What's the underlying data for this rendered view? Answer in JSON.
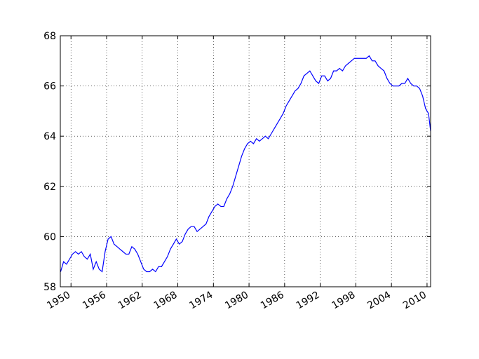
{
  "chart_data": {
    "type": "line",
    "x": [
      1948.25,
      1948.75,
      1949.25,
      1949.75,
      1950.25,
      1950.75,
      1951.25,
      1951.75,
      1952.25,
      1952.75,
      1953.25,
      1953.75,
      1954.25,
      1954.75,
      1955.25,
      1955.75,
      1956.25,
      1956.75,
      1957.25,
      1957.75,
      1958.25,
      1958.75,
      1959.25,
      1959.75,
      1960.25,
      1960.75,
      1961.25,
      1961.75,
      1962.25,
      1962.75,
      1963.25,
      1963.75,
      1964.25,
      1964.75,
      1965.25,
      1965.75,
      1966.25,
      1966.75,
      1967.25,
      1967.75,
      1968.25,
      1968.75,
      1969.25,
      1969.75,
      1970.25,
      1970.75,
      1971.25,
      1971.75,
      1972.25,
      1972.75,
      1973.25,
      1973.75,
      1974.25,
      1974.75,
      1975.25,
      1975.75,
      1976.25,
      1976.75,
      1977.25,
      1977.75,
      1978.25,
      1978.75,
      1979.25,
      1979.75,
      1980.25,
      1980.75,
      1981.25,
      1981.75,
      1982.25,
      1982.75,
      1983.25,
      1983.75,
      1984.25,
      1984.75,
      1985.25,
      1985.75,
      1986.25,
      1986.75,
      1987.25,
      1987.75,
      1988.25,
      1988.75,
      1989.25,
      1989.75,
      1990.25,
      1990.75,
      1991.25,
      1991.75,
      1992.25,
      1992.75,
      1993.25,
      1993.75,
      1994.25,
      1994.75,
      1995.25,
      1995.75,
      1996.25,
      1996.75,
      1997.25,
      1997.75,
      1998.25,
      1998.75,
      1999.25,
      1999.75,
      2000.25,
      2000.75,
      2001.25,
      2001.75,
      2002.25,
      2002.75,
      2003.25,
      2003.75,
      2004.25,
      2004.75,
      2005.25,
      2005.75,
      2006.25,
      2006.75,
      2007.25,
      2007.75,
      2008.25,
      2008.75,
      2009.25,
      2009.75,
      2010.25,
      2010.6
    ],
    "series": [
      {
        "color": "#0000ff",
        "values": [
          58.6,
          59.0,
          58.9,
          59.1,
          59.3,
          59.4,
          59.3,
          59.4,
          59.2,
          59.1,
          59.3,
          58.7,
          59.0,
          58.7,
          58.6,
          59.4,
          59.9,
          60.0,
          59.7,
          59.6,
          59.5,
          59.4,
          59.3,
          59.3,
          59.6,
          59.5,
          59.3,
          59.0,
          58.7,
          58.6,
          58.6,
          58.7,
          58.6,
          58.8,
          58.8,
          59.0,
          59.2,
          59.5,
          59.7,
          59.9,
          59.7,
          59.8,
          60.1,
          60.3,
          60.4,
          60.4,
          60.2,
          60.3,
          60.4,
          60.5,
          60.8,
          61.0,
          61.2,
          61.3,
          61.2,
          61.2,
          61.5,
          61.7,
          62.0,
          62.4,
          62.8,
          63.2,
          63.5,
          63.7,
          63.8,
          63.7,
          63.9,
          63.8,
          63.9,
          64.0,
          63.9,
          64.1,
          64.3,
          64.5,
          64.7,
          64.9,
          65.2,
          65.4,
          65.6,
          65.8,
          65.9,
          66.1,
          66.4,
          66.5,
          66.6,
          66.4,
          66.2,
          66.1,
          66.4,
          66.4,
          66.2,
          66.3,
          66.6,
          66.6,
          66.7,
          66.6,
          66.8,
          66.9,
          67.0,
          67.1,
          67.1,
          67.1,
          67.1,
          67.1,
          67.2,
          67.0,
          67.0,
          66.8,
          66.7,
          66.6,
          66.3,
          66.1,
          66.0,
          66.0,
          66.0,
          66.1,
          66.1,
          66.3,
          66.1,
          66.0,
          66.0,
          65.9,
          65.6,
          65.1,
          64.9,
          64.2
        ]
      }
    ],
    "xlim": [
      1948.2,
      2010.6
    ],
    "xticks": [
      1950,
      1956,
      1962,
      1968,
      1974,
      1980,
      1986,
      1992,
      1998,
      2004,
      2010
    ],
    "ylim": [
      58,
      68
    ],
    "yticks": [
      58,
      60,
      62,
      64,
      66,
      68
    ],
    "grid": true
  }
}
